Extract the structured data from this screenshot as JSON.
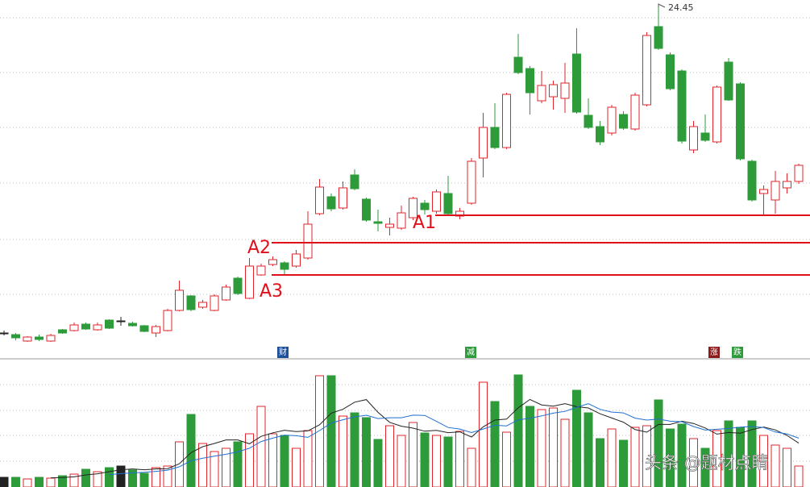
{
  "chart_data": {
    "type": "candlestick",
    "open": [
      12.21,
      12.15,
      11.91,
      12.06,
      11.91,
      12.33,
      12.3,
      12.54,
      12.33,
      12.69,
      12.66,
      12.57,
      12.48,
      12.21,
      12.3,
      13.05,
      13.59,
      13.17,
      13.05,
      13.44,
      14.25,
      13.5,
      14.37,
      14.76,
      14.82,
      14.7,
      15.0,
      16.65,
      17.28,
      16.86,
      18.09,
      17.19,
      16.35,
      16.14,
      16.11,
      16.5,
      17.04,
      16.74,
      17.4,
      16.56,
      17.04,
      18.72,
      19.86,
      19.11,
      22.47,
      22.05,
      20.85,
      21.0,
      20.94,
      22.59,
      20.31,
      19.89,
      19.65,
      20.34,
      19.8,
      20.7,
      23.61,
      22.56,
      21.96,
      19.02,
      19.65,
      19.32,
      22.29,
      21.48,
      18.6,
      17.4,
      17.16,
      17.61,
      17.85
    ],
    "close": [
      12.21,
      12.03,
      12.06,
      11.97,
      12.12,
      12.21,
      12.51,
      12.36,
      12.51,
      12.39,
      12.66,
      12.48,
      12.27,
      12.45,
      13.05,
      13.8,
      13.08,
      13.35,
      13.59,
      13.92,
      13.68,
      14.7,
      14.7,
      14.94,
      14.58,
      15.15,
      16.26,
      17.64,
      16.83,
      17.61,
      17.58,
      16.41,
      16.29,
      16.26,
      16.68,
      17.22,
      16.8,
      17.46,
      16.65,
      16.74,
      18.6,
      19.86,
      19.11,
      21.09,
      21.9,
      21.15,
      21.42,
      21.45,
      21.51,
      20.43,
      19.86,
      19.32,
      20.61,
      19.83,
      21.06,
      23.28,
      22.8,
      21.3,
      19.35,
      19.89,
      19.38,
      21.36,
      20.88,
      18.69,
      17.16,
      17.55,
      17.85,
      17.85,
      18.45
    ],
    "high": [
      12.3,
      12.21,
      12.09,
      12.15,
      12.18,
      12.36,
      12.6,
      12.6,
      12.6,
      12.72,
      12.81,
      12.63,
      12.51,
      12.51,
      13.11,
      14.16,
      13.62,
      13.44,
      13.65,
      14.01,
      14.31,
      15.0,
      14.79,
      15.06,
      14.88,
      15.3,
      16.74,
      17.94,
      17.4,
      17.85,
      18.3,
      17.25,
      16.8,
      16.5,
      16.95,
      17.28,
      17.16,
      17.55,
      18.06,
      16.86,
      18.72,
      20.4,
      20.76,
      21.15,
      23.34,
      22.14,
      21.96,
      21.6,
      22.26,
      23.55,
      20.94,
      20.1,
      20.7,
      20.46,
      21.15,
      23.4,
      24.45,
      22.65,
      22.02,
      20.1,
      20.34,
      21.42,
      22.44,
      21.54,
      18.66,
      17.7,
      18.24,
      18.15,
      18.51
    ],
    "low": [
      12.12,
      11.94,
      11.88,
      11.91,
      11.88,
      12.18,
      12.27,
      12.33,
      12.3,
      12.36,
      12.48,
      12.45,
      12.24,
      12.06,
      12.27,
      13.02,
      13.02,
      13.11,
      13.02,
      13.41,
      13.62,
      13.47,
      14.34,
      14.7,
      14.4,
      14.64,
      14.94,
      16.59,
      16.74,
      16.8,
      17.52,
      16.35,
      15.99,
      15.84,
      16.05,
      16.41,
      16.62,
      16.65,
      16.59,
      16.44,
      16.98,
      18.0,
      19.05,
      19.05,
      21.84,
      20.34,
      20.76,
      20.52,
      20.4,
      20.37,
      19.8,
      19.2,
      19.56,
      19.77,
      19.74,
      20.64,
      22.74,
      21.24,
      19.26,
      18.9,
      19.32,
      19.26,
      20.85,
      18.63,
      17.1,
      16.56,
      16.65,
      17.4,
      17.76
    ],
    "ylim": [
      11.25,
      24.6
    ],
    "up_color": "#e0262b",
    "down_color": "#2e9b3a",
    "flat_color": "#222222",
    "volume": [
      12,
      12,
      10,
      12,
      11,
      14,
      16,
      22,
      19,
      24,
      26,
      21,
      17,
      24,
      26,
      56,
      90,
      54,
      44,
      48,
      56,
      66,
      100,
      66,
      64,
      48,
      70,
      138,
      138,
      88,
      92,
      86,
      59,
      76,
      64,
      80,
      67,
      64,
      62,
      69,
      48,
      130,
      106,
      68,
      139,
      100,
      96,
      98,
      84,
      120,
      92,
      60,
      72,
      58,
      74,
      76,
      108,
      72,
      78,
      60,
      48,
      70,
      82,
      74,
      82,
      64,
      52,
      48,
      26
    ],
    "volume_ylim": [
      0,
      158
    ],
    "ma_periods": [
      5,
      10
    ],
    "ma_colors": [
      "#222222",
      "#1f6fd1"
    ],
    "levels": [
      {
        "label": "A1",
        "value": 16.59
      },
      {
        "label": "A2",
        "value": 15.57
      },
      {
        "label": "A3",
        "value": 14.37
      }
    ],
    "level_color": "#e0101a",
    "events": [
      "财",
      "减",
      "涨",
      "跌"
    ]
  },
  "watermark": "头条 @题材点睛"
}
